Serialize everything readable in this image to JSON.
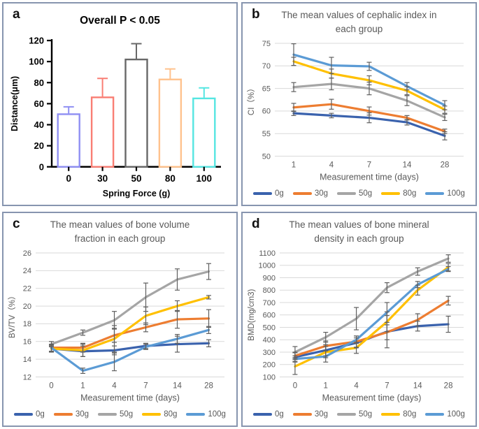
{
  "figure": {
    "panel_labels": [
      "a",
      "b",
      "c",
      "d"
    ]
  },
  "chart_data": [
    {
      "id": "a",
      "type": "bar",
      "panel_label": "a",
      "title": "Overall P < 0.05",
      "xlabel": "Spring Force (g)",
      "ylabel": "Distance(μm)",
      "categories": [
        "0",
        "30",
        "50",
        "80",
        "100"
      ],
      "values": [
        50,
        66,
        102,
        83,
        65
      ],
      "errors_upper": [
        7,
        18,
        15,
        10,
        10
      ],
      "bar_colors": [
        "#8F8FF3",
        "#F97E74",
        "#686868",
        "#FFC28D",
        "#55E6E2"
      ],
      "bar_fill": "#ffffff",
      "ylim": [
        0,
        120
      ],
      "ytick_step": 20,
      "axis_color": "#000000",
      "grid": false
    },
    {
      "id": "b",
      "type": "line",
      "panel_label": "b",
      "title": "The mean values of cephalic index in each group",
      "title_lines": [
        "The mean values of cephalic index in",
        "each group"
      ],
      "xlabel": "Measurement time (days)",
      "ylabel": "CI（%）",
      "categories": [
        "1",
        "4",
        "7",
        "14",
        "28"
      ],
      "ylim": [
        50,
        75
      ],
      "ytick_step": 5,
      "grid": true,
      "legend_position": "bottom",
      "series": [
        {
          "name": "0g",
          "color": "#3A62AD",
          "values": [
            59.5,
            59.0,
            58.5,
            57.5,
            54.5
          ],
          "errors": [
            0.5,
            0.5,
            1.1,
            0.6,
            0.9
          ]
        },
        {
          "name": "30g",
          "color": "#ED7D31",
          "values": [
            60.8,
            61.5,
            60.0,
            58.5,
            55.5
          ],
          "errors": [
            0.9,
            1.1,
            0.9,
            0.5,
            0.5
          ]
        },
        {
          "name": "50g",
          "color": "#A5A5A5",
          "values": [
            65.3,
            66.0,
            65.0,
            62.3,
            58.6
          ],
          "errors": [
            1.0,
            1.3,
            1.4,
            1.1,
            0.7
          ]
        },
        {
          "name": "80g",
          "color": "#FFC000",
          "values": [
            71.0,
            68.3,
            66.8,
            64.5,
            60.3
          ],
          "errors": [
            0.9,
            1.0,
            1.0,
            0.9,
            0.8
          ]
        },
        {
          "name": "100g",
          "color": "#5B9BD5",
          "values": [
            72.5,
            70.1,
            69.9,
            65.5,
            61.3
          ],
          "errors": [
            2.4,
            1.8,
            0.9,
            0.8,
            1.0
          ]
        }
      ]
    },
    {
      "id": "c",
      "type": "line",
      "panel_label": "c",
      "title": "The mean values of bone volume fraction in each group",
      "title_lines": [
        "The mean values of bone volume",
        "fraction in each group"
      ],
      "xlabel": "Measurement time (days)",
      "ylabel": "BV/TV（%）",
      "categories": [
        "0",
        "1",
        "4",
        "7",
        "14",
        "28"
      ],
      "ylim": [
        12,
        26
      ],
      "ytick_step": 2,
      "grid": true,
      "legend_position": "bottom",
      "series": [
        {
          "name": "0g",
          "color": "#3A62AD",
          "values": [
            15.2,
            14.9,
            15.0,
            15.5,
            15.7,
            15.8
          ],
          "errors": [
            0.4,
            0.6,
            0.5,
            0.3,
            0.9,
            0.4
          ]
        },
        {
          "name": "30g",
          "color": "#ED7D31",
          "values": [
            15.3,
            15.3,
            16.7,
            17.6,
            18.5,
            18.6
          ],
          "errors": [
            0.4,
            0.5,
            0.8,
            0.5,
            1.0,
            1.0
          ]
        },
        {
          "name": "50g",
          "color": "#A5A5A5",
          "values": [
            15.7,
            17.0,
            18.4,
            21.0,
            23.0,
            23.9
          ],
          "errors": [
            0.3,
            0.3,
            1.0,
            1.6,
            1.2,
            0.9
          ]
        },
        {
          "name": "80g",
          "color": "#FFC000",
          "values": [
            15.2,
            15.0,
            16.3,
            18.9,
            20.0,
            21.0
          ],
          "errors": [
            0.3,
            0.7,
            1.5,
            1.0,
            0.6,
            0.2
          ]
        },
        {
          "name": "100g",
          "color": "#5B9BD5",
          "values": [
            15.3,
            12.7,
            13.7,
            15.4,
            16.3,
            17.3
          ],
          "errors": [
            0.4,
            0.3,
            1.0,
            0.3,
            0.5,
            0.4
          ]
        }
      ]
    },
    {
      "id": "d",
      "type": "line",
      "panel_label": "d",
      "title": "The mean values of bone mineral density in each group",
      "title_lines": [
        "The mean values of bone mineral",
        "density in each group"
      ],
      "xlabel": "Measurement time (days)",
      "ylabel": "BMD(mg/cm3)",
      "categories": [
        "0",
        "1",
        "4",
        "7",
        "14",
        "28"
      ],
      "ylim": [
        100,
        1100
      ],
      "ytick_step": 100,
      "grid": true,
      "legend_position": "bottom",
      "series": [
        {
          "name": "0g",
          "color": "#3A62AD",
          "values": [
            260,
            315,
            375,
            465,
            510,
            525
          ],
          "errors": [
            35,
            45,
            40,
            130,
            40,
            65
          ]
        },
        {
          "name": "30g",
          "color": "#ED7D31",
          "values": [
            270,
            350,
            385,
            460,
            560,
            715
          ],
          "errors": [
            30,
            40,
            45,
            60,
            50,
            35
          ]
        },
        {
          "name": "50g",
          "color": "#A5A5A5",
          "values": [
            300,
            420,
            570,
            820,
            950,
            1055
          ],
          "errors": [
            45,
            40,
            90,
            40,
            30,
            30
          ]
        },
        {
          "name": "80g",
          "color": "#FFC000",
          "values": [
            185,
            300,
            335,
            545,
            800,
            985
          ],
          "errors": [
            65,
            45,
            45,
            80,
            40,
            30
          ]
        },
        {
          "name": "100g",
          "color": "#5B9BD5",
          "values": [
            245,
            265,
            400,
            620,
            845,
            970
          ],
          "errors": [
            25,
            45,
            30,
            80,
            25,
            20
          ]
        }
      ]
    }
  ],
  "style": {
    "panel_border_color": "#8795AF",
    "grid_color": "#D9D9D9",
    "tick_label_color": "#595959",
    "error_bar_color": "#5F5F5F"
  }
}
